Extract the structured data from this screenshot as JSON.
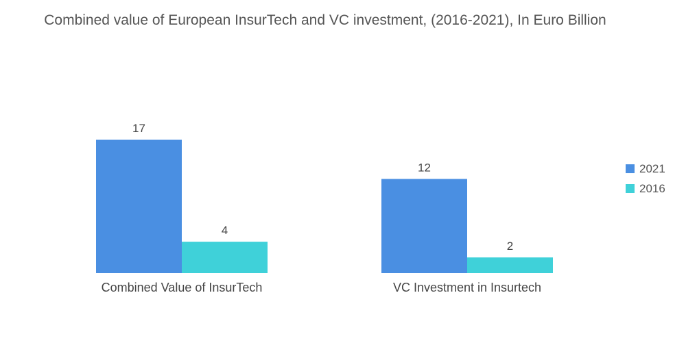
{
  "chart_data": {
    "type": "bar",
    "title": "Combined value of European InsurTech and VC investment, (2016-2021), In Euro Billion",
    "categories": [
      "Combined Value of InsurTech",
      "VC Investment in Insurtech"
    ],
    "series": [
      {
        "name": "2021",
        "values": [
          17,
          12
        ],
        "color": "#4a8fe2"
      },
      {
        "name": "2016",
        "values": [
          4,
          2
        ],
        "color": "#3fd1d9"
      }
    ],
    "xlabel": "",
    "ylabel": "",
    "ylim": [
      0,
      17
    ],
    "grid": false,
    "legend_position": "right"
  }
}
